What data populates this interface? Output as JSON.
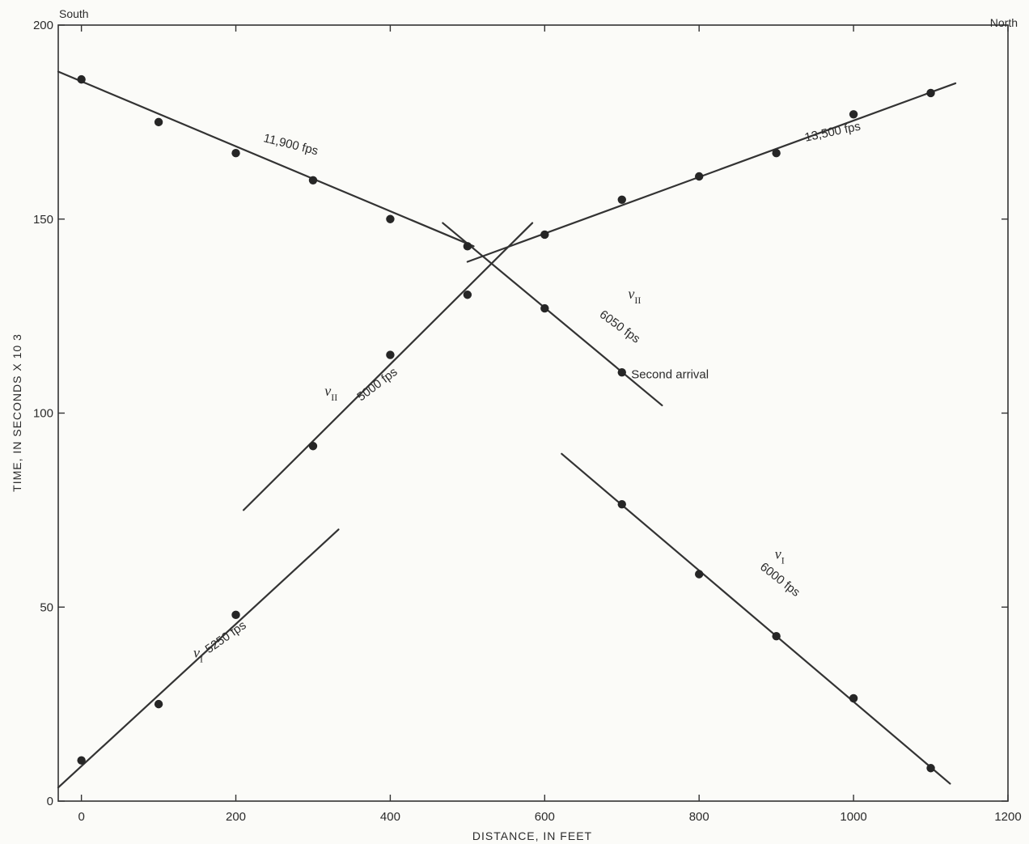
{
  "chart_data": {
    "type": "scatter",
    "xlabel": "DISTANCE, IN FEET",
    "ylabel": "TIME, IN SECONDS X 10 3",
    "xlim": [
      -30,
      1200
    ],
    "ylim": [
      0,
      200
    ],
    "xticks": [
      0,
      200,
      400,
      600,
      800,
      1000,
      1200
    ],
    "yticks": [
      0,
      50,
      100,
      150,
      200
    ],
    "x_tick_labels": [
      "0",
      "200",
      "400",
      "600",
      "800",
      "1000",
      "1200"
    ],
    "y_tick_labels": [
      "0",
      "50",
      "100",
      "150",
      "200"
    ],
    "corner_labels": {
      "left": "South",
      "right": "North"
    },
    "grid": false,
    "line_color": "#333333",
    "point_color": "#262626",
    "series": [
      {
        "points": [
          [
            0,
            10.5
          ],
          [
            100,
            25
          ],
          [
            200,
            48
          ],
          [
            300,
            91.5
          ],
          [
            400,
            115
          ],
          [
            500,
            130.5
          ],
          [
            600,
            146
          ],
          [
            700,
            155
          ],
          [
            800,
            161
          ],
          [
            900,
            167
          ],
          [
            1000,
            177
          ],
          [
            1100,
            182.5
          ]
        ]
      },
      {
        "points": [
          [
            0,
            186
          ],
          [
            100,
            175
          ],
          [
            200,
            167
          ],
          [
            300,
            160
          ],
          [
            400,
            150
          ],
          [
            500,
            143
          ],
          [
            600,
            127
          ],
          [
            700,
            110.5
          ]
        ]
      },
      {
        "points": [
          [
            700,
            76.5
          ],
          [
            800,
            58.5
          ],
          [
            900,
            42.5
          ],
          [
            1000,
            26.5
          ],
          [
            1100,
            8.5
          ]
        ]
      }
    ],
    "fit_lines": [
      {
        "x": [
          -30,
          333
        ],
        "y": [
          3.5,
          70
        ]
      },
      {
        "x": [
          210,
          584
        ],
        "y": [
          75,
          149
        ]
      },
      {
        "x": [
          500,
          1132
        ],
        "y": [
          139,
          185
        ]
      },
      {
        "x": [
          -30,
          508
        ],
        "y": [
          188,
          143
        ]
      },
      {
        "x": [
          468,
          752
        ],
        "y": [
          149,
          102
        ]
      },
      {
        "x": [
          622,
          1125
        ],
        "y": [
          89.5,
          4.5
        ]
      }
    ],
    "annotations": [
      {
        "velocity": "",
        "text": "5250 fps",
        "sub": "",
        "at": [
          165,
          38
        ],
        "angle": -35
      },
      {
        "velocity": "v",
        "text": "",
        "sub": "I",
        "at": [
          145,
          37
        ],
        "angle": 0
      },
      {
        "velocity": "",
        "text": "5000 fps",
        "sub": "",
        "at": [
          362,
          103
        ],
        "angle": -37
      },
      {
        "velocity": "v",
        "text": "",
        "sub": "II",
        "at": [
          315,
          104.5
        ],
        "angle": 0
      },
      {
        "velocity": "",
        "text": "11,900 fps",
        "sub": "",
        "at": [
          235,
          170
        ],
        "angle": 14
      },
      {
        "velocity": "",
        "text": "13,500 fps",
        "sub": "",
        "at": [
          938,
          170
        ],
        "angle": -12
      },
      {
        "velocity": "",
        "text": "6050 fps",
        "sub": "",
        "at": [
          670,
          125
        ],
        "angle": 36
      },
      {
        "velocity": "v",
        "text": "",
        "sub": "II",
        "at": [
          708,
          129.5
        ],
        "angle": 0
      },
      {
        "velocity": "",
        "text": "Second arrival",
        "sub": "",
        "at": [
          712,
          109
        ],
        "angle": 0
      },
      {
        "velocity": "",
        "text": "6000 fps",
        "sub": "",
        "at": [
          878,
          60
        ],
        "angle": 38
      },
      {
        "velocity": "v",
        "text": "",
        "sub": "I",
        "at": [
          898,
          62.5
        ],
        "angle": 0
      }
    ]
  }
}
